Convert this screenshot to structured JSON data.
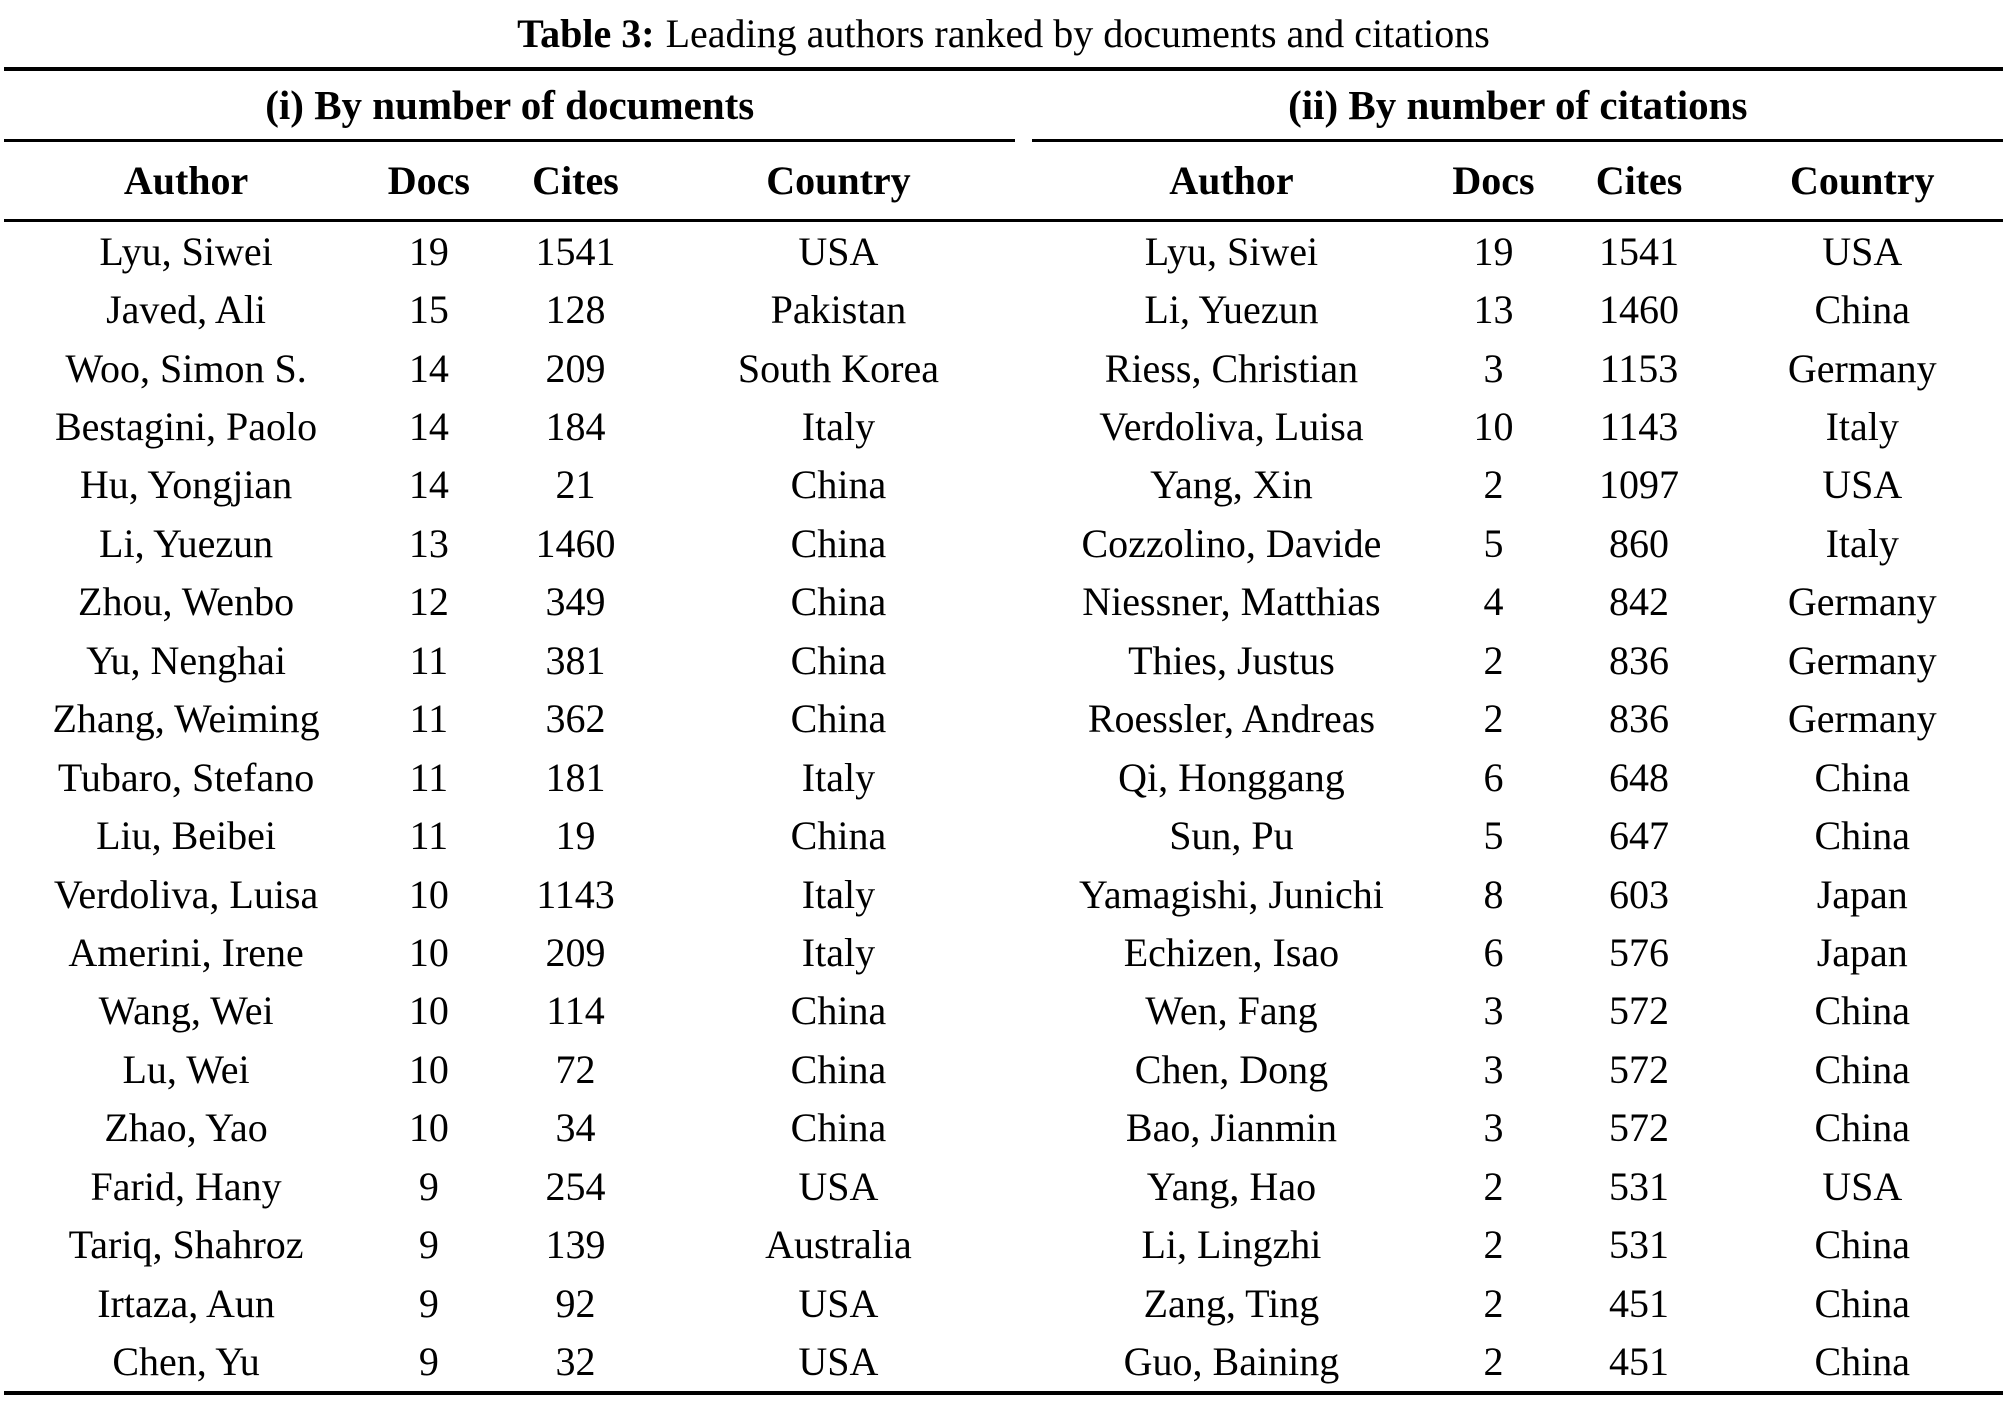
{
  "caption": {
    "label": "Table 3:",
    "text": "Leading authors ranked by documents and citations"
  },
  "panels": [
    {
      "heading": "(i) By number of documents",
      "columns": [
        "Author",
        "Docs",
        "Cites",
        "Country"
      ],
      "rows": [
        [
          "Lyu, Siwei",
          "19",
          "1541",
          "USA"
        ],
        [
          "Javed, Ali",
          "15",
          "128",
          "Pakistan"
        ],
        [
          "Woo, Simon S.",
          "14",
          "209",
          "South Korea"
        ],
        [
          "Bestagini, Paolo",
          "14",
          "184",
          "Italy"
        ],
        [
          "Hu, Yongjian",
          "14",
          "21",
          "China"
        ],
        [
          "Li, Yuezun",
          "13",
          "1460",
          "China"
        ],
        [
          "Zhou, Wenbo",
          "12",
          "349",
          "China"
        ],
        [
          "Yu, Nenghai",
          "11",
          "381",
          "China"
        ],
        [
          "Zhang, Weiming",
          "11",
          "362",
          "China"
        ],
        [
          "Tubaro, Stefano",
          "11",
          "181",
          "Italy"
        ],
        [
          "Liu, Beibei",
          "11",
          "19",
          "China"
        ],
        [
          "Verdoliva, Luisa",
          "10",
          "1143",
          "Italy"
        ],
        [
          "Amerini, Irene",
          "10",
          "209",
          "Italy"
        ],
        [
          "Wang, Wei",
          "10",
          "114",
          "China"
        ],
        [
          "Lu, Wei",
          "10",
          "72",
          "China"
        ],
        [
          "Zhao, Yao",
          "10",
          "34",
          "China"
        ],
        [
          "Farid, Hany",
          "9",
          "254",
          "USA"
        ],
        [
          "Tariq, Shahroz",
          "9",
          "139",
          "Australia"
        ],
        [
          "Irtaza, Aun",
          "9",
          "92",
          "USA"
        ],
        [
          "Chen, Yu",
          "9",
          "32",
          "USA"
        ]
      ]
    },
    {
      "heading": "(ii) By number of citations",
      "columns": [
        "Author",
        "Docs",
        "Cites",
        "Country"
      ],
      "rows": [
        [
          "Lyu, Siwei",
          "19",
          "1541",
          "USA"
        ],
        [
          "Li, Yuezun",
          "13",
          "1460",
          "China"
        ],
        [
          "Riess, Christian",
          "3",
          "1153",
          "Germany"
        ],
        [
          "Verdoliva, Luisa",
          "10",
          "1143",
          "Italy"
        ],
        [
          "Yang, Xin",
          "2",
          "1097",
          "USA"
        ],
        [
          "Cozzolino, Davide",
          "5",
          "860",
          "Italy"
        ],
        [
          "Niessner, Matthias",
          "4",
          "842",
          "Germany"
        ],
        [
          "Thies, Justus",
          "2",
          "836",
          "Germany"
        ],
        [
          "Roessler, Andreas",
          "2",
          "836",
          "Germany"
        ],
        [
          "Qi, Honggang",
          "6",
          "648",
          "China"
        ],
        [
          "Sun, Pu",
          "5",
          "647",
          "China"
        ],
        [
          "Yamagishi, Junichi",
          "8",
          "603",
          "Japan"
        ],
        [
          "Echizen, Isao",
          "6",
          "576",
          "Japan"
        ],
        [
          "Wen, Fang",
          "3",
          "572",
          "China"
        ],
        [
          "Chen, Dong",
          "3",
          "572",
          "China"
        ],
        [
          "Bao, Jianmin",
          "3",
          "572",
          "China"
        ],
        [
          "Yang, Hao",
          "2",
          "531",
          "USA"
        ],
        [
          "Li, Lingzhi",
          "2",
          "531",
          "China"
        ],
        [
          "Zang, Ting",
          "2",
          "451",
          "China"
        ],
        [
          "Guo, Baining",
          "2",
          "451",
          "China"
        ]
      ]
    }
  ],
  "colors": {
    "text": "#000000",
    "background": "#ffffff",
    "rule": "#000000"
  }
}
